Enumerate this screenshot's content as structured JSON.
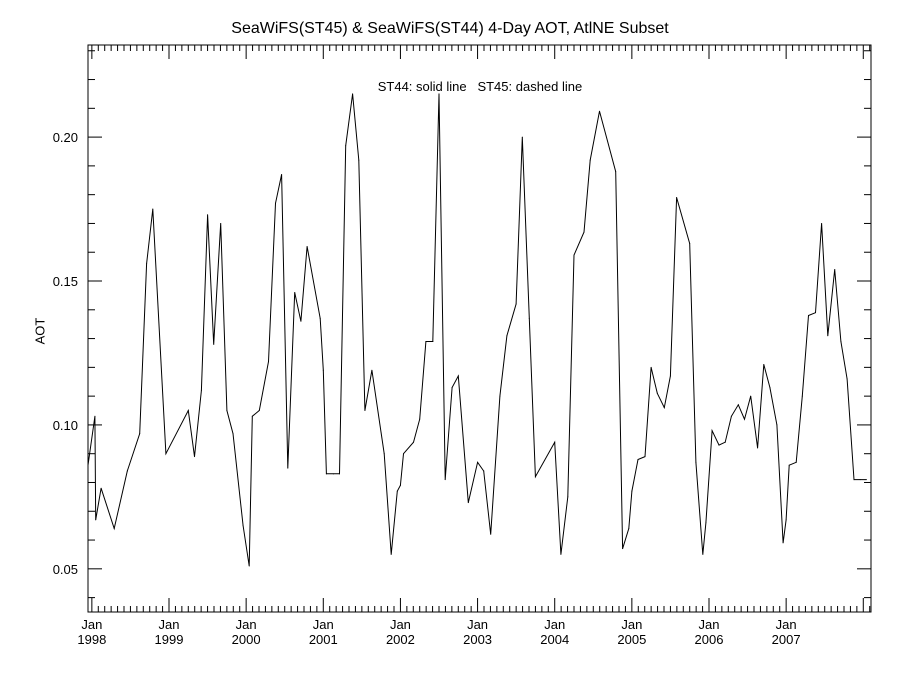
{
  "chart_data": {
    "type": "line",
    "title": "SeaWiFS(ST45) & SeaWiFS(ST44) 4-Day AOT, AtlNE Subset",
    "annotation": "ST44: solid line   ST45: dashed line",
    "xlabel": "",
    "ylabel": "AOT",
    "xlim": [
      1997.95,
      2008.1
    ],
    "ylim": [
      0.035,
      0.232
    ],
    "y_ticks": [
      0.05,
      0.1,
      0.15,
      0.2
    ],
    "y_tick_labels": [
      "0.05",
      "0.10",
      "0.15",
      "0.20"
    ],
    "x_ticks": [
      {
        "month": "Jan",
        "year": "1998",
        "x": 1998.0
      },
      {
        "month": "Jan",
        "year": "1999",
        "x": 1999.0
      },
      {
        "month": "Jan",
        "year": "2000",
        "x": 2000.0
      },
      {
        "month": "Jan",
        "year": "2001",
        "x": 2001.0
      },
      {
        "month": "Jan",
        "year": "2002",
        "x": 2002.0
      },
      {
        "month": "Jan",
        "year": "2003",
        "x": 2003.0
      },
      {
        "month": "Jan",
        "year": "2004",
        "x": 2004.0
      },
      {
        "month": "Jan",
        "year": "2005",
        "x": 2005.0
      },
      {
        "month": "Jan",
        "year": "2006",
        "x": 2006.0
      },
      {
        "month": "Jan",
        "year": "2007",
        "x": 2007.0
      }
    ],
    "grid": false,
    "series": [
      {
        "name": "ST44",
        "style": "solid",
        "color": "#000000",
        "x": [
          1997.95,
          1998.04,
          1998.05,
          1998.12,
          1998.29,
          1998.46,
          1998.62,
          1998.71,
          1998.79,
          1998.96,
          1999.25,
          1999.33,
          1999.42,
          1999.5,
          1999.58,
          1999.67,
          1999.75,
          1999.83,
          1999.96,
          2000.04,
          2000.08,
          2000.17,
          2000.29,
          2000.38,
          2000.46,
          2000.54,
          2000.63,
          2000.71,
          2000.79,
          2000.96,
          2001.0,
          2001.04,
          2001.13,
          2001.21,
          2001.29,
          2001.38,
          2001.46,
          2001.54,
          2001.63,
          2001.79,
          2001.88,
          2001.96,
          2002.0,
          2002.04,
          2002.17,
          2002.25,
          2002.33,
          2002.42,
          2002.5,
          2002.58,
          2002.67,
          2002.75,
          2002.88,
          2003.0,
          2003.08,
          2003.17,
          2003.29,
          2003.38,
          2003.5,
          2003.58,
          2003.67,
          2003.75,
          2004.0,
          2004.08,
          2004.17,
          2004.25,
          2004.38,
          2004.46,
          2004.58,
          2004.79,
          2004.88,
          2004.96,
          2005.0,
          2005.08,
          2005.17,
          2005.25,
          2005.33,
          2005.42,
          2005.5,
          2005.58,
          2005.75,
          2005.83,
          2005.92,
          2005.96,
          2006.04,
          2006.13,
          2006.21,
          2006.29,
          2006.38,
          2006.46,
          2006.54,
          2006.63,
          2006.71,
          2006.79,
          2006.88,
          2006.96,
          2007.0,
          2007.04,
          2007.13,
          2007.21,
          2007.29,
          2007.38,
          2007.46,
          2007.54,
          2007.63,
          2007.71,
          2007.79,
          2007.88,
          2007.96,
          2008.04
        ],
        "y": [
          0.086,
          0.103,
          0.067,
          0.078,
          0.064,
          0.084,
          0.097,
          0.156,
          0.175,
          0.09,
          0.105,
          0.089,
          0.112,
          0.173,
          0.128,
          0.17,
          0.105,
          0.097,
          0.065,
          0.051,
          0.103,
          0.105,
          0.122,
          0.177,
          0.187,
          0.085,
          0.146,
          0.136,
          0.162,
          0.137,
          0.119,
          0.083,
          0.083,
          0.083,
          0.197,
          0.215,
          0.192,
          0.105,
          0.119,
          0.09,
          0.055,
          0.077,
          0.079,
          0.09,
          0.094,
          0.102,
          0.129,
          0.129,
          0.215,
          0.081,
          0.113,
          0.117,
          0.073,
          0.087,
          0.084,
          0.062,
          0.11,
          0.131,
          0.142,
          0.2,
          0.137,
          0.082,
          0.094,
          0.055,
          0.075,
          0.159,
          0.167,
          0.192,
          0.209,
          0.188,
          0.057,
          0.064,
          0.077,
          0.088,
          0.089,
          0.12,
          0.111,
          0.106,
          0.117,
          0.179,
          0.163,
          0.087,
          0.055,
          0.066,
          0.098,
          0.093,
          0.094,
          0.103,
          0.107,
          0.102,
          0.11,
          0.092,
          0.121,
          0.113,
          0.1,
          0.059,
          0.067,
          0.086,
          0.087,
          0.11,
          0.138,
          0.139,
          0.17,
          0.131,
          0.154,
          0.129,
          0.116,
          0.081,
          0.081,
          0.081
        ]
      }
    ]
  }
}
